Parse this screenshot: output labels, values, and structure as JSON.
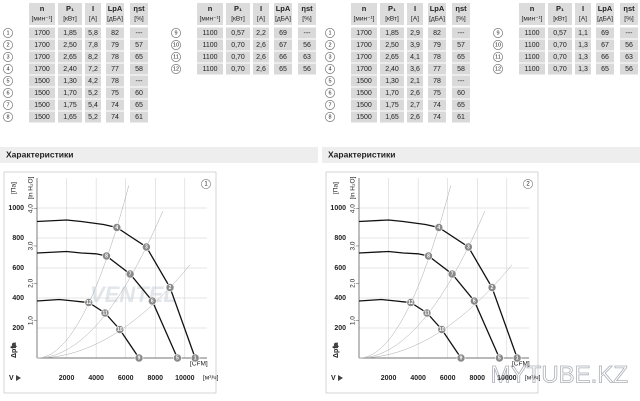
{
  "panels": [
    {
      "table": {
        "header": [
          {
            "name": "n",
            "unit": "[мин⁻¹]"
          },
          {
            "name": "P₁",
            "unit": "[кВт]"
          },
          {
            "name": "I",
            "unit": "[A]"
          },
          {
            "name": "LpA",
            "unit": "[дБА]"
          },
          {
            "name": "ηst",
            "unit": "[%]"
          }
        ],
        "rows": [
          [
            "1",
            "1700",
            "1,85",
            "5,8",
            "82",
            "---"
          ],
          [
            "2",
            "1700",
            "2,50",
            "7,8",
            "79",
            "57"
          ],
          [
            "3",
            "1700",
            "2,65",
            "8,2",
            "78",
            "65"
          ],
          [
            "4",
            "1700",
            "2,40",
            "7,2",
            "77",
            "58"
          ],
          [
            "5",
            "1500",
            "1,30",
            "4,2",
            "78",
            "---"
          ],
          [
            "6",
            "1500",
            "1,70",
            "5,2",
            "75",
            "60"
          ],
          [
            "7",
            "1500",
            "1,75",
            "5,4",
            "74",
            "65"
          ],
          [
            "8",
            "1500",
            "1,65",
            "5,2",
            "74",
            "61"
          ],
          [
            "9",
            "1100",
            "0,57",
            "2,2",
            "69",
            "---"
          ],
          [
            "10",
            "1100",
            "0,70",
            "2,6",
            "67",
            "56"
          ],
          [
            "11",
            "1100",
            "0,70",
            "2,6",
            "66",
            "63"
          ],
          [
            "12",
            "1100",
            "0,70",
            "2,6",
            "65",
            "56"
          ]
        ]
      },
      "section_title": "Характеристики",
      "chart": {
        "panel_number": "1",
        "xlim": [
          0,
          11500
        ],
        "xticks": [
          2000,
          4000,
          6000,
          8000,
          10000
        ],
        "ylim": [
          0,
          1200
        ],
        "yticks": [
          200,
          400,
          600,
          800,
          1000
        ],
        "y2lim": [
          0,
          4.82
        ],
        "y2ticks": [
          {
            "value": 1,
            "label": "1,0"
          },
          {
            "value": 2,
            "label": "2,0"
          },
          {
            "value": 3,
            "label": "3,0"
          },
          {
            "value": 4,
            "label": "4,0"
          }
        ],
        "y_unit": "[Па]",
        "y2_unit": "[in H₂O]",
        "x_unit": "[м³/ч]",
        "x2_unit": "[CFM]",
        "x_symbol": "V",
        "y_symbol": "Δpfa",
        "watermark": "VENTEL",
        "curves": [
          {
            "x": [
              0,
              2000,
              3000,
              4500,
              5400,
              7400,
              9000,
              10700
            ],
            "y": [
              910,
              920,
              910,
              890,
              870,
              740,
              470,
              0
            ]
          },
          {
            "x": [
              0,
              2000,
              3000,
              4000,
              4700,
              6300,
              7800,
              9500
            ],
            "y": [
              700,
              710,
              700,
              695,
              680,
              560,
              380,
              0
            ]
          },
          {
            "x": [
              0,
              1500,
              2500,
              3000,
              3500,
              4600,
              5600,
              6900
            ],
            "y": [
              380,
              390,
              380,
              375,
              370,
              300,
              190,
              0
            ]
          }
        ],
        "points": [
          {
            "label": "4",
            "x": 5400,
            "y": 870
          },
          {
            "label": "3",
            "x": 7400,
            "y": 740
          },
          {
            "label": "2",
            "x": 9000,
            "y": 470
          },
          {
            "label": "1",
            "x": 10700,
            "y": 0
          },
          {
            "label": "8",
            "x": 4700,
            "y": 680
          },
          {
            "label": "7",
            "x": 6300,
            "y": 560
          },
          {
            "label": "6",
            "x": 7800,
            "y": 380
          },
          {
            "label": "5",
            "x": 9500,
            "y": 0
          },
          {
            "label": "12",
            "x": 3500,
            "y": 370
          },
          {
            "label": "11",
            "x": 4600,
            "y": 300
          },
          {
            "label": "10",
            "x": 5600,
            "y": 190
          },
          {
            "label": "9",
            "x": 6900,
            "y": 0
          }
        ]
      }
    },
    {
      "table": {
        "header": [
          {
            "name": "n",
            "unit": "[мин⁻¹]"
          },
          {
            "name": "P₁",
            "unit": "[кВт]"
          },
          {
            "name": "I",
            "unit": "[A]"
          },
          {
            "name": "LpA",
            "unit": "[дБА]"
          },
          {
            "name": "ηst",
            "unit": "[%]"
          }
        ],
        "rows": [
          [
            "1",
            "1700",
            "1,85",
            "2,9",
            "82",
            "---"
          ],
          [
            "2",
            "1700",
            "2,50",
            "3,9",
            "79",
            "57"
          ],
          [
            "3",
            "1700",
            "2,65",
            "4,1",
            "78",
            "65"
          ],
          [
            "4",
            "1700",
            "2,40",
            "3,6",
            "77",
            "58"
          ],
          [
            "5",
            "1500",
            "1,30",
            "2,1",
            "78",
            "---"
          ],
          [
            "6",
            "1500",
            "1,70",
            "2,6",
            "75",
            "60"
          ],
          [
            "7",
            "1500",
            "1,75",
            "2,7",
            "74",
            "65"
          ],
          [
            "8",
            "1500",
            "1,65",
            "2,6",
            "74",
            "61"
          ],
          [
            "9",
            "1100",
            "0,57",
            "1,1",
            "69",
            "---"
          ],
          [
            "10",
            "1100",
            "0,70",
            "1,3",
            "67",
            "56"
          ],
          [
            "11",
            "1100",
            "0,70",
            "1,3",
            "66",
            "63"
          ],
          [
            "12",
            "1100",
            "0,70",
            "1,3",
            "65",
            "56"
          ]
        ]
      },
      "section_title": "Характеристики",
      "chart": {
        "panel_number": "2",
        "xlim": [
          0,
          11500
        ],
        "xticks": [
          2000,
          4000,
          6000,
          8000,
          10000
        ],
        "ylim": [
          0,
          1200
        ],
        "yticks": [
          200,
          400,
          600,
          800,
          1000
        ],
        "y2lim": [
          0,
          4.82
        ],
        "y2ticks": [
          {
            "value": 1,
            "label": "1,0"
          },
          {
            "value": 2,
            "label": "2,0"
          },
          {
            "value": 3,
            "label": "3,0"
          },
          {
            "value": 4,
            "label": "4,0"
          }
        ],
        "y_unit": "[Па]",
        "y2_unit": "[in H₂O]",
        "x_unit": "[м³/ч]",
        "x2_unit": "[CFM]",
        "x_symbol": "V",
        "y_symbol": "Δpfa",
        "curves": [
          {
            "x": [
              0,
              2000,
              3000,
              4500,
              5400,
              7400,
              9000,
              10700
            ],
            "y": [
              910,
              920,
              910,
              890,
              870,
              740,
              470,
              0
            ]
          },
          {
            "x": [
              0,
              2000,
              3000,
              4000,
              4700,
              6300,
              7800,
              9500
            ],
            "y": [
              700,
              710,
              700,
              695,
              680,
              560,
              380,
              0
            ]
          },
          {
            "x": [
              0,
              1500,
              2500,
              3000,
              3500,
              4600,
              5600,
              6900
            ],
            "y": [
              380,
              390,
              380,
              375,
              370,
              300,
              190,
              0
            ]
          }
        ],
        "points": [
          {
            "label": "4",
            "x": 5400,
            "y": 870
          },
          {
            "label": "3",
            "x": 7400,
            "y": 740
          },
          {
            "label": "2",
            "x": 9000,
            "y": 470
          },
          {
            "label": "1",
            "x": 10700,
            "y": 0
          },
          {
            "label": "8",
            "x": 4700,
            "y": 680
          },
          {
            "label": "7",
            "x": 6300,
            "y": 560
          },
          {
            "label": "6",
            "x": 7800,
            "y": 380
          },
          {
            "label": "5",
            "x": 9500,
            "y": 0
          },
          {
            "label": "12",
            "x": 3500,
            "y": 370
          },
          {
            "label": "11",
            "x": 4600,
            "y": 300
          },
          {
            "label": "10",
            "x": 5600,
            "y": 190
          },
          {
            "label": "9",
            "x": 6900,
            "y": 0
          }
        ]
      }
    }
  ],
  "watermark": "MYTUBE.KZ"
}
